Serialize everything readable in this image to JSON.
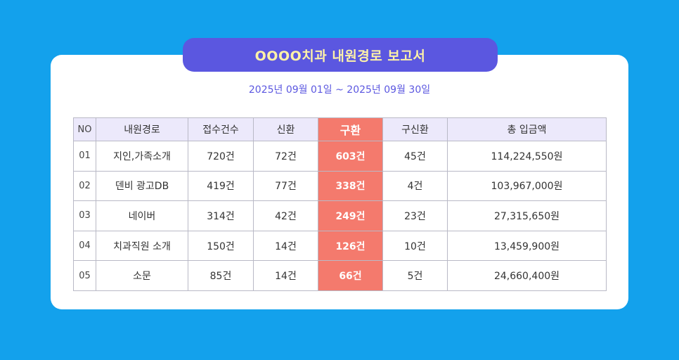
{
  "report": {
    "title": "OOOO치과 내원경로 보고서",
    "date_range": "2025년 09월 01일 ~ 2025년 09월 30일"
  },
  "colors": {
    "background": "#13a1ec",
    "title_pill": "#5b57e0",
    "title_text": "#fdf2a8",
    "header_row": "#ece9fb",
    "highlight_column": "#f47a6d"
  },
  "table": {
    "headers": [
      "NO",
      "내원경로",
      "접수건수",
      "신환",
      "구환",
      "구신환",
      "총 입금액"
    ],
    "highlight_column_index": 4,
    "rows": [
      [
        "01",
        "지인,가족소개",
        "720건",
        "72건",
        "603건",
        "45건",
        "114,224,550원"
      ],
      [
        "02",
        "덴비 광고DB",
        "419건",
        "77건",
        "338건",
        "4건",
        "103,967,000원"
      ],
      [
        "03",
        "네이버",
        "314건",
        "42건",
        "249건",
        "23건",
        "27,315,650원"
      ],
      [
        "04",
        "치과직원 소개",
        "150건",
        "14건",
        "126건",
        "10건",
        "13,459,900원"
      ],
      [
        "05",
        "소문",
        "85건",
        "14건",
        "66건",
        "5건",
        "24,660,400원"
      ]
    ]
  }
}
